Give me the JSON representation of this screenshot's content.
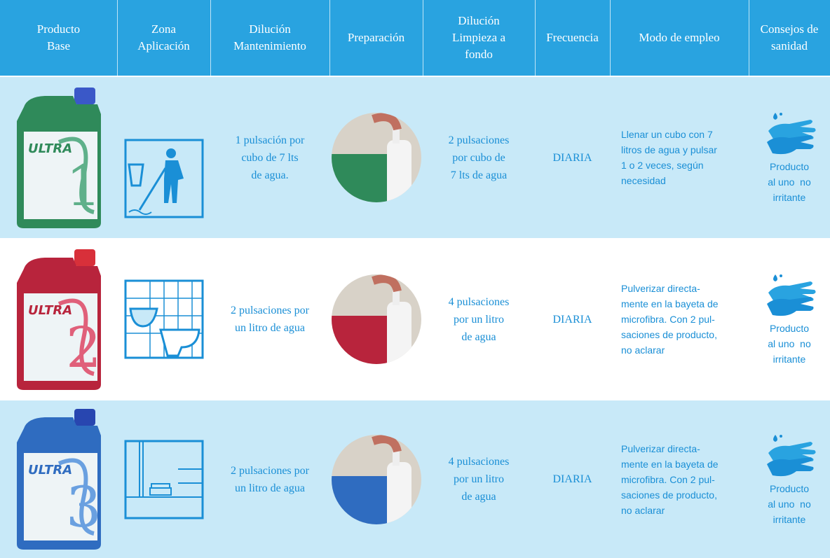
{
  "header": [
    [
      "Producto",
      "Base"
    ],
    [
      "Zona",
      "Aplicación"
    ],
    [
      "Dilución",
      "Mantenimiento"
    ],
    [
      "Preparación"
    ],
    [
      "Dilución",
      "Limpieza a",
      "fondo"
    ],
    [
      "Frecuencia"
    ],
    [
      "Modo de empleo"
    ],
    [
      "Consejos de",
      "sanidad"
    ]
  ],
  "rows": [
    {
      "label": "ULTRA",
      "number": "1",
      "mantenimiento": [
        "1 pulsación por",
        "cubo de 7 lts",
        "de agua."
      ],
      "limpieza": [
        "2 pulsaciones",
        "por cubo de",
        "7 lts de agua"
      ],
      "frecuencia": "DIARIA",
      "modo": [
        "Llenar un cubo con 7",
        "litros de agua y pulsar",
        "1 o 2 veces, según",
        "necesidad"
      ],
      "consejos": [
        "Producto",
        "al uno  no",
        "irritante"
      ]
    },
    {
      "label": "ULTRA",
      "number": "2",
      "mantenimiento": [
        "2 pulsaciones por",
        "un litro de agua"
      ],
      "limpieza": [
        "4 pulsaciones",
        "por un litro",
        "de agua"
      ],
      "frecuencia": "DIARIA",
      "modo": [
        "Pulverizar directa-",
        "mente en la bayeta de",
        "microfibra. Con 2 pul-",
        "saciones de producto,",
        "no aclarar"
      ],
      "consejos": [
        "Producto",
        "al uno  no",
        "irritante"
      ]
    },
    {
      "label": "ULTRA",
      "number": "3",
      "mantenimiento": [
        "2 pulsaciones por",
        "un litro de agua"
      ],
      "limpieza": [
        "4 pulsaciones",
        "por un litro",
        "de agua"
      ],
      "frecuencia": "DIARIA",
      "modo": [
        "Pulverizar directa-",
        "mente en la bayeta de",
        "microfibra. Con 2 pul-",
        "saciones de producto,",
        "no aclarar"
      ],
      "consejos": [
        "Producto",
        "al uno  no",
        "irritante"
      ]
    }
  ]
}
